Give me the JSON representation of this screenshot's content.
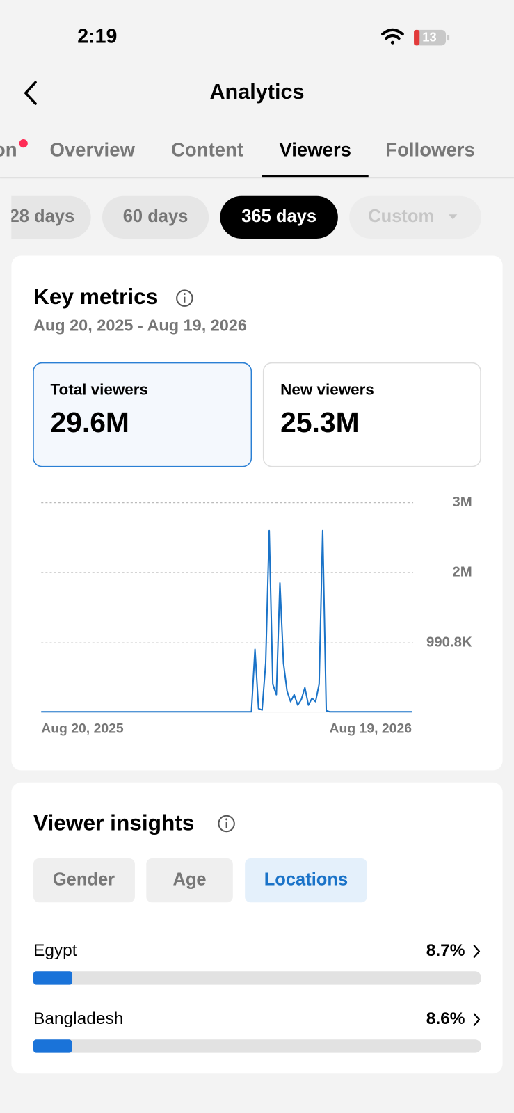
{
  "status_bar": {
    "time": "2:19",
    "battery": "13"
  },
  "header": {
    "title": "Analytics"
  },
  "tabs": [
    "on",
    "Overview",
    "Content",
    "Viewers",
    "Followers"
  ],
  "ranges": [
    "28 days",
    "60 days",
    "365 days",
    "Custom"
  ],
  "key_metrics": {
    "title": "Key metrics",
    "date_range": "Aug 20, 2025 - Aug 19, 2026",
    "cards": [
      {
        "label": "Total viewers",
        "value": "29.6M"
      },
      {
        "label": "New viewers",
        "value": "25.3M"
      }
    ]
  },
  "chart_data": {
    "type": "line",
    "color": "#1a73c8",
    "categories": [
      "Aug 20, 2025",
      null,
      null,
      null,
      null,
      null,
      null,
      null,
      null,
      null,
      null,
      null,
      null,
      null,
      null,
      null,
      null,
      null,
      null,
      null,
      null,
      null,
      null,
      null,
      null,
      null,
      null,
      null,
      null,
      null,
      null,
      null,
      null,
      null,
      null,
      null,
      null,
      null,
      null,
      null,
      null,
      null,
      null,
      null,
      null,
      null,
      null,
      null,
      null,
      null,
      null,
      null,
      null,
      null,
      null,
      null,
      null,
      null,
      null,
      null,
      null,
      null,
      null,
      null,
      null,
      null,
      null,
      null,
      null,
      null,
      null,
      null,
      null,
      null,
      null,
      null,
      null,
      null,
      null,
      null,
      null,
      null,
      null,
      null,
      null,
      null,
      null,
      null,
      null,
      null,
      null,
      null,
      null,
      null,
      null,
      null,
      null,
      null,
      null,
      null,
      null,
      null,
      null,
      null,
      "Aug 19, 2026"
    ],
    "values": [
      5000,
      5000,
      5000,
      5000,
      5000,
      5000,
      5000,
      5000,
      5000,
      5000,
      5000,
      5000,
      5000,
      5000,
      5000,
      5000,
      5000,
      5000,
      5000,
      5000,
      5000,
      5000,
      5000,
      5000,
      5000,
      5000,
      5000,
      5000,
      5000,
      5000,
      5000,
      5000,
      5000,
      5000,
      5000,
      5000,
      5000,
      5000,
      5000,
      5000,
      5000,
      5000,
      5000,
      5000,
      5000,
      5000,
      5000,
      5000,
      5000,
      5000,
      5000,
      5000,
      5000,
      5000,
      5000,
      5000,
      5000,
      5000,
      5000,
      5000,
      900000,
      50000,
      30000,
      700000,
      2600000,
      400000,
      250000,
      1850000,
      700000,
      300000,
      150000,
      250000,
      100000,
      180000,
      350000,
      100000,
      200000,
      150000,
      400000,
      2600000,
      20000,
      5000,
      5000,
      5000,
      5000,
      5000,
      5000,
      5000,
      5000,
      5000,
      5000,
      5000,
      5000,
      5000,
      5000,
      5000,
      5000,
      5000,
      5000,
      5000,
      5000,
      5000,
      5000,
      5000,
      5000
    ],
    "ylim": [
      0,
      3000000
    ],
    "yticks": [
      {
        "value": 3000000,
        "label": "3M"
      },
      {
        "value": 2000000,
        "label": "2M"
      },
      {
        "value": 990800,
        "label": "990.8K"
      }
    ],
    "grid": true
  },
  "viewer_insights": {
    "title": "Viewer insights",
    "tabs": [
      "Gender",
      "Age",
      "Locations"
    ],
    "locations": {
      "names": [
        "Egypt",
        "Bangladesh"
      ],
      "values": [
        8.7,
        8.6
      ],
      "value_labels": [
        "8.7%",
        "8.6%"
      ],
      "xlim": [
        0,
        100
      ],
      "color": "#1a73d9"
    }
  }
}
